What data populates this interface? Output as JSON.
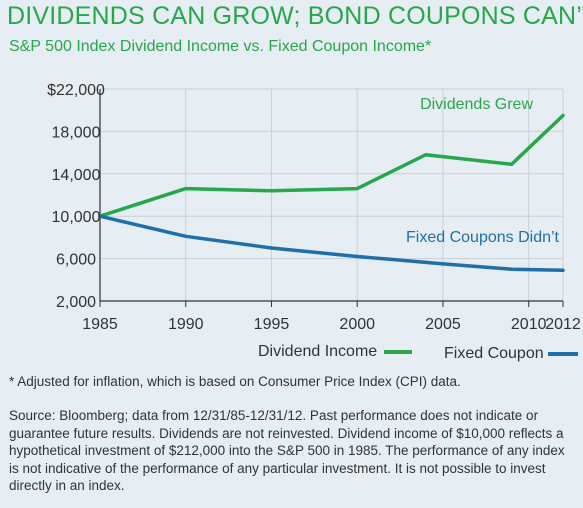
{
  "title": "DIVIDENDS CAN GROW; BOND COUPONS CAN’T",
  "subtitle": "S&P 500 Index Dividend Income vs. Fixed Coupon Income*",
  "footnote": "* Adjusted for inflation, which is based on Consumer Price Index (CPI) data.",
  "source": "Source: Bloomberg; data from 12/31/85-12/31/12. Past performance does not indicate or guarantee future results. Dividends are not reinvested. Dividend income of $10,000 reflects a hypothetical investment of $212,000 into the S&P 500 in 1985. The performance of any index is not indicative of the performance of any particular investment. It is not possible to invest directly in an index.",
  "colors": {
    "dividend": "#27a74b",
    "coupon": "#1f6fad",
    "grid": "#c9d1d8",
    "axis": "#333333",
    "background": "#e6edf3"
  },
  "chart_data": {
    "type": "line",
    "title": "",
    "xlabel": "",
    "ylabel": "",
    "xlim": [
      1985,
      2012
    ],
    "ylim": [
      2000,
      22000
    ],
    "x_ticks": [
      1985,
      1990,
      1995,
      2000,
      2005,
      2010,
      2012
    ],
    "x_tick_labels": [
      "1985",
      "1990",
      "1995",
      "2000",
      "2005",
      "2010",
      "2012"
    ],
    "y_ticks": [
      2000,
      6000,
      10000,
      14000,
      18000,
      22000
    ],
    "y_tick_labels": [
      "2,000",
      "6,000",
      "10,000",
      "14,000",
      "18,000",
      "$22,000"
    ],
    "grid": true,
    "legend": "bottom-right",
    "series": [
      {
        "name": "Dividend Income",
        "color": "#27a74b",
        "x": [
          1985,
          1990,
          1995,
          2000,
          2004,
          2009,
          2012
        ],
        "y": [
          10000,
          12600,
          12400,
          12600,
          15800,
          14900,
          19500
        ]
      },
      {
        "name": "Fixed Coupon",
        "color": "#1f6fad",
        "x": [
          1985,
          1990,
          1995,
          2000,
          2005,
          2009,
          2012
        ],
        "y": [
          10000,
          8100,
          7000,
          6200,
          5500,
          5000,
          4900
        ]
      }
    ],
    "annotations": [
      {
        "text": "Dividends Grew",
        "series": "Dividend Income",
        "color": "#27a74b"
      },
      {
        "text": "Fixed Coupons Didn’t",
        "series": "Fixed Coupon",
        "color": "#1f6fad"
      }
    ]
  }
}
